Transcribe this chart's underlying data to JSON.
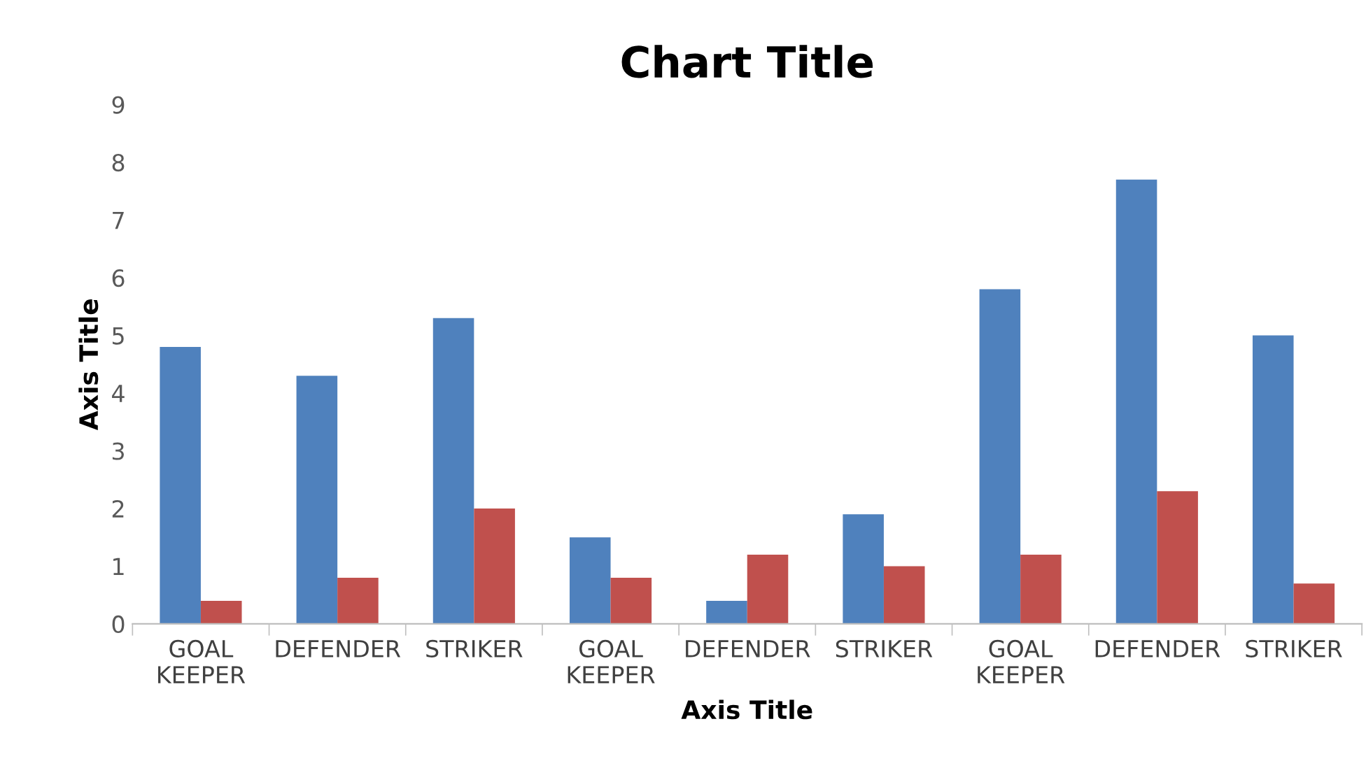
{
  "chart_data": {
    "type": "bar",
    "title": "Chart Title",
    "xlabel": "Axis Title",
    "ylabel": "Axis Title",
    "categories": [
      "GOAL\nKEEPER",
      "DEFENDER",
      "STRIKER",
      "GOAL\nKEEPER",
      "DEFENDER",
      "STRIKER",
      "GOAL\nKEEPER",
      "DEFENDER",
      "STRIKER"
    ],
    "series": [
      {
        "color": "#4f81bd",
        "values": [
          4.8,
          4.3,
          5.3,
          1.5,
          0.4,
          1.9,
          5.8,
          7.7,
          5.0
        ]
      },
      {
        "color": "#c0504d",
        "values": [
          0.4,
          0.8,
          2.0,
          0.8,
          1.2,
          1.0,
          1.2,
          2.3,
          0.7
        ]
      }
    ],
    "ylim": [
      0,
      9
    ],
    "yticks": [
      0,
      1,
      2,
      3,
      4,
      5,
      6,
      7,
      8,
      9
    ],
    "grid": false,
    "legend": false
  }
}
